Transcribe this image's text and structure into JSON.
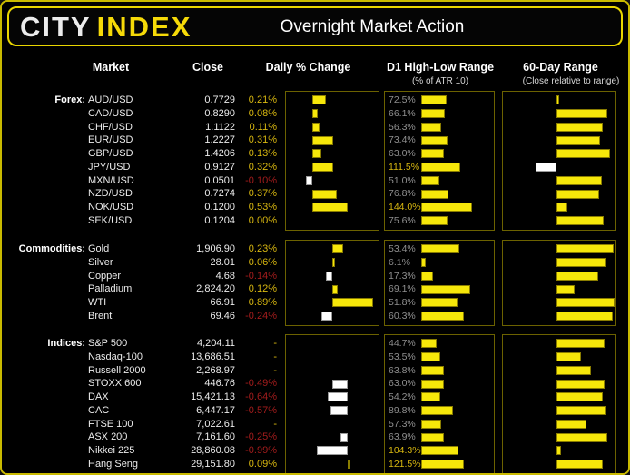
{
  "header": {
    "logo_city": "CITY",
    "logo_index": "INDEX",
    "title": "Overnight Market Action"
  },
  "columns": {
    "market": "Market",
    "close": "Close",
    "daily_change": "Daily % Change",
    "d1_range": "D1 High-Low Range",
    "d1_range_sub": "(% of ATR 10)",
    "sixty_day": "60-Day Range",
    "sixty_day_sub": "(Close relative to range)"
  },
  "colors": {
    "bar_yellow": "#f6e70a",
    "bar_negative_white": "#ffffff",
    "positive_text": "#d9b810",
    "negative_text": "#a31c1c",
    "d1_label_gray": "#8f8f8f",
    "d1_label_highlight": "#d9b810",
    "box_border": "#6c6200",
    "accent_border": "#e9d600"
  },
  "chart_data": [
    {
      "type": "bar",
      "section_label": "Forex:",
      "daily_axis": {
        "min": -0.4,
        "max": 1.0
      },
      "d1_axis": {
        "min": 0,
        "max": 200
      },
      "sixty_axis": {
        "min": -1,
        "max": 1
      },
      "rows": [
        {
          "market": "AUD/USD",
          "close": "0.7729",
          "daily_label": "0.21%",
          "daily_value": 0.21,
          "d1_label": "72.5%",
          "d1_value": 72.5,
          "sixty_value": 0.05
        },
        {
          "market": "CAD/USD",
          "close": "0.8290",
          "daily_label": "0.08%",
          "daily_value": 0.08,
          "d1_label": "66.1%",
          "d1_value": 66.1,
          "sixty_value": 0.88
        },
        {
          "market": "CHF/USD",
          "close": "1.1122",
          "daily_label": "0.11%",
          "daily_value": 0.11,
          "d1_label": "56.3%",
          "d1_value": 56.3,
          "sixty_value": 0.8
        },
        {
          "market": "EUR/USD",
          "close": "1.2227",
          "daily_label": "0.31%",
          "daily_value": 0.31,
          "d1_label": "73.4%",
          "d1_value": 73.4,
          "sixty_value": 0.75
        },
        {
          "market": "GBP/USD",
          "close": "1.4206",
          "daily_label": "0.13%",
          "daily_value": 0.13,
          "d1_label": "63.0%",
          "d1_value": 63.0,
          "sixty_value": 0.92
        },
        {
          "market": "JPY/USD",
          "close": "0.9127",
          "daily_label": "0.32%",
          "daily_value": 0.32,
          "d1_label": "111.5%",
          "d1_value": 111.5,
          "sixty_value": -0.4
        },
        {
          "market": "MXN/USD",
          "close": "0.0501",
          "daily_label": "-0.10%",
          "daily_value": -0.1,
          "d1_label": "51.0%",
          "d1_value": 51.0,
          "sixty_value": 0.78
        },
        {
          "market": "NZD/USD",
          "close": "0.7274",
          "daily_label": "0.37%",
          "daily_value": 0.37,
          "d1_label": "76.8%",
          "d1_value": 76.8,
          "sixty_value": 0.74
        },
        {
          "market": "NOK/USD",
          "close": "0.1200",
          "daily_label": "0.53%",
          "daily_value": 0.53,
          "d1_label": "144.0%",
          "d1_value": 144.0,
          "sixty_value": 0.18
        },
        {
          "market": "SEK/USD",
          "close": "0.1204",
          "daily_label": "0.00%",
          "daily_value": 0.0,
          "d1_label": "75.6%",
          "d1_value": 75.6,
          "sixty_value": 0.81
        }
      ]
    },
    {
      "type": "bar",
      "section_label": "Commodities:",
      "daily_axis": {
        "min": -1.0,
        "max": 1.0
      },
      "d1_axis": {
        "min": 0,
        "max": 100
      },
      "sixty_axis": {
        "min": -1,
        "max": 1
      },
      "rows": [
        {
          "market": "Gold",
          "close": "1,906.90",
          "daily_label": "0.23%",
          "daily_value": 0.23,
          "d1_label": "53.4%",
          "d1_value": 53.4,
          "sixty_value": 0.98
        },
        {
          "market": "Silver",
          "close": "28.01",
          "daily_label": "0.06%",
          "daily_value": 0.06,
          "d1_label": "6.1%",
          "d1_value": 6.1,
          "sixty_value": 0.86
        },
        {
          "market": "Copper",
          "close": "4.68",
          "daily_label": "-0.14%",
          "daily_value": -0.14,
          "d1_label": "17.3%",
          "d1_value": 17.3,
          "sixty_value": 0.72
        },
        {
          "market": "Palladium",
          "close": "2,824.20",
          "daily_label": "0.12%",
          "daily_value": 0.12,
          "d1_label": "69.1%",
          "d1_value": 69.1,
          "sixty_value": 0.31
        },
        {
          "market": "WTI",
          "close": "66.91",
          "daily_label": "0.89%",
          "daily_value": 0.89,
          "d1_label": "51.8%",
          "d1_value": 51.8,
          "sixty_value": 1.0
        },
        {
          "market": "Brent",
          "close": "69.46",
          "daily_label": "-0.24%",
          "daily_value": -0.24,
          "d1_label": "60.3%",
          "d1_value": 60.3,
          "sixty_value": 0.97
        }
      ]
    },
    {
      "type": "bar",
      "section_label": "Indices:",
      "daily_axis": {
        "min": -2.0,
        "max": 1.0
      },
      "d1_axis": {
        "min": 0,
        "max": 200
      },
      "sixty_axis": {
        "min": -1,
        "max": 1
      },
      "rows": [
        {
          "market": "S&P 500",
          "close": "4,204.11",
          "daily_label": "-",
          "daily_value": null,
          "d1_label": "44.7%",
          "d1_value": 44.7,
          "sixty_value": 0.83
        },
        {
          "market": "Nasdaq-100",
          "close": "13,686.51",
          "daily_label": "-",
          "daily_value": null,
          "d1_label": "53.5%",
          "d1_value": 53.5,
          "sixty_value": 0.42
        },
        {
          "market": "Russell 2000",
          "close": "2,268.97",
          "daily_label": "-",
          "daily_value": null,
          "d1_label": "63.8%",
          "d1_value": 63.8,
          "sixty_value": 0.59
        },
        {
          "market": "STOXX 600",
          "close": "446.76",
          "daily_label": "-0.49%",
          "daily_value": -0.49,
          "d1_label": "63.0%",
          "d1_value": 63.0,
          "sixty_value": 0.83
        },
        {
          "market": "DAX",
          "close": "15,421.13",
          "daily_label": "-0.64%",
          "daily_value": -0.64,
          "d1_label": "54.2%",
          "d1_value": 54.2,
          "sixty_value": 0.79
        },
        {
          "market": "CAC",
          "close": "6,447.17",
          "daily_label": "-0.57%",
          "daily_value": -0.57,
          "d1_label": "89.8%",
          "d1_value": 89.8,
          "sixty_value": 0.86
        },
        {
          "market": "FTSE 100",
          "close": "7,022.61",
          "daily_label": "-",
          "daily_value": null,
          "d1_label": "57.3%",
          "d1_value": 57.3,
          "sixty_value": 0.52
        },
        {
          "market": "ASX 200",
          "close": "7,161.60",
          "daily_label": "-0.25%",
          "daily_value": -0.25,
          "d1_label": "63.9%",
          "d1_value": 63.9,
          "sixty_value": 0.88
        },
        {
          "market": "Nikkei 225",
          "close": "28,860.08",
          "daily_label": "-0.99%",
          "daily_value": -0.99,
          "d1_label": "104.3%",
          "d1_value": 104.3,
          "sixty_value": 0.08
        },
        {
          "market": "Hang Seng",
          "close": "29,151.80",
          "daily_label": "0.09%",
          "daily_value": 0.09,
          "d1_label": "121.5%",
          "d1_value": 121.5,
          "sixty_value": 0.8
        }
      ]
    }
  ]
}
